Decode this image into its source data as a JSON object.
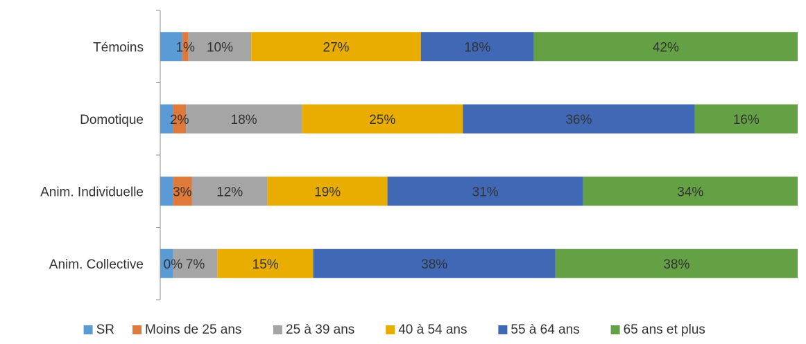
{
  "chart_data": {
    "type": "bar",
    "orientation": "horizontal",
    "stacked": true,
    "percent_stacked": true,
    "categories": [
      "Témoins",
      "Domotique",
      "Anim. Individuelle",
      "Anim. Collective"
    ],
    "series": [
      {
        "name": "SR",
        "color": "#5b9bd5",
        "values": [
          3.5,
          2,
          2,
          2
        ],
        "labels": [
          "",
          "",
          "",
          ""
        ]
      },
      {
        "name": "Moins de 25 ans",
        "color": "#e07a3a",
        "values": [
          1,
          2,
          3,
          0
        ],
        "labels": [
          "1%",
          "2%",
          "3%",
          "0%"
        ]
      },
      {
        "name": "25 à 39 ans",
        "color": "#a5a5a5",
        "values": [
          10,
          18,
          12,
          7
        ],
        "labels": [
          "10%",
          "18%",
          "12%",
          "7%"
        ]
      },
      {
        "name": "40 à 54 ans",
        "color": "#e8ad00",
        "values": [
          27,
          25,
          19,
          15
        ],
        "labels": [
          "27%",
          "25%",
          "19%",
          "15%"
        ]
      },
      {
        "name": "55 à 64 ans",
        "color": "#4168b5",
        "values": [
          18,
          36,
          31,
          38
        ],
        "labels": [
          "18%",
          "36%",
          "31%",
          "38%"
        ]
      },
      {
        "name": "65 ans et plus",
        "color": "#64a044",
        "values": [
          42,
          16,
          34,
          38
        ],
        "labels": [
          "42%",
          "16%",
          "34%",
          "38%"
        ]
      }
    ],
    "xlim": [
      0,
      100
    ],
    "grid": false,
    "legend_position": "bottom"
  }
}
